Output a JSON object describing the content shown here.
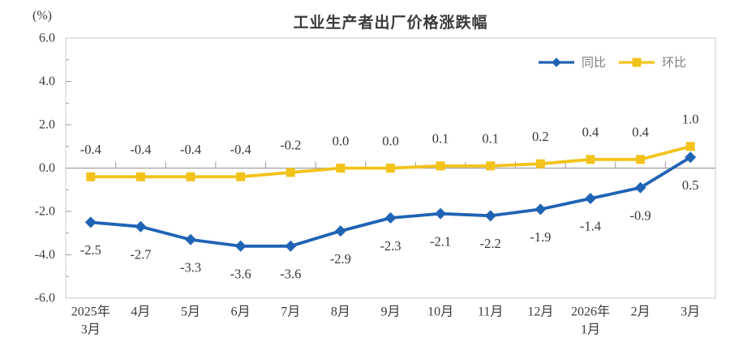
{
  "chart": {
    "title": "工业生产者出厂价格涨跌幅",
    "unit": "(%)"
  },
  "legend": {
    "items": [
      {
        "label": "同比",
        "marker": "diamond",
        "color": "#1f63b5"
      },
      {
        "label": "环比",
        "marker": "square",
        "color": "#f3c31c"
      }
    ]
  },
  "colors": {
    "plot_border": "#c8c8c8",
    "zero_line": "#a0a0a0",
    "tick": "#9a9a9a",
    "axis_text": "#3c3c3c",
    "data_label_text": "#383838",
    "series_tongbi_blue": "#1f63b5",
    "series_huanbi_yellow": "#f3c31c"
  },
  "chart_data": {
    "type": "line",
    "title": "工业生产者出厂价格涨跌幅",
    "ylabel": "(%)",
    "categories": [
      [
        "2025年",
        "3月"
      ],
      [
        "4月"
      ],
      [
        "5月"
      ],
      [
        "6月"
      ],
      [
        "7月"
      ],
      [
        "8月"
      ],
      [
        "9月"
      ],
      [
        "10月"
      ],
      [
        "11月"
      ],
      [
        "12月"
      ],
      [
        "2026年",
        "1月"
      ],
      [
        "2月"
      ],
      [
        "3月"
      ]
    ],
    "series": [
      {
        "name": "环比",
        "color": "#f3c31c",
        "marker": "square",
        "label_position": "above",
        "values": [
          -0.4,
          -0.4,
          -0.4,
          -0.4,
          -0.2,
          0.0,
          0.0,
          0.1,
          0.1,
          0.2,
          0.4,
          0.4,
          1.0
        ]
      },
      {
        "name": "同比",
        "color": "#1f63b5",
        "marker": "diamond",
        "label_position": "below",
        "values": [
          -2.5,
          -2.7,
          -3.3,
          -3.6,
          -3.6,
          -2.9,
          -2.3,
          -2.1,
          -2.2,
          -1.9,
          -1.4,
          -0.9,
          0.5
        ]
      }
    ],
    "ylim": [
      -6.0,
      6.0
    ],
    "yticks": [
      6.0,
      4.0,
      2.0,
      0.0,
      -2.0,
      -4.0,
      -6.0
    ],
    "grid": false,
    "data_labels": true,
    "legend_position": "top-right"
  }
}
